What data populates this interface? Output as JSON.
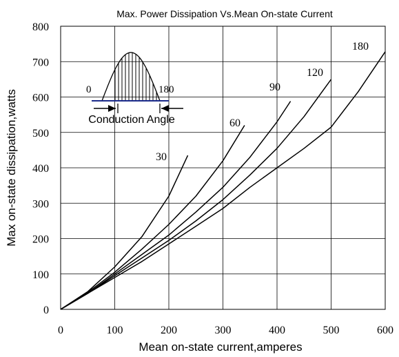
{
  "chart_data": {
    "type": "line",
    "title": "Max. Power Dissipation Vs.Mean On-state Current",
    "xlabel": "Mean on-state current,amperes",
    "ylabel": "Max on-state dissipation,watts",
    "xlim": [
      0,
      600
    ],
    "ylim": [
      0,
      800
    ],
    "x_ticks": [
      "0",
      "100",
      "200",
      "300",
      "400",
      "500",
      "600"
    ],
    "y_ticks": [
      "0",
      "100",
      "200",
      "300",
      "400",
      "500",
      "600",
      "700",
      "800"
    ],
    "grid": true,
    "series": [
      {
        "name": "30",
        "x": [
          0,
          50,
          100,
          150,
          200,
          235
        ],
        "y": [
          0,
          50,
          120,
          205,
          320,
          435
        ]
      },
      {
        "name": "60",
        "x": [
          0,
          50,
          100,
          150,
          200,
          250,
          300,
          340
        ],
        "y": [
          0,
          48,
          105,
          170,
          240,
          320,
          420,
          520
        ]
      },
      {
        "name": "90",
        "x": [
          0,
          50,
          100,
          150,
          200,
          250,
          300,
          350,
          400,
          425
        ],
        "y": [
          0,
          45,
          100,
          155,
          210,
          275,
          345,
          430,
          530,
          588
        ]
      },
      {
        "name": "120",
        "x": [
          0,
          50,
          100,
          150,
          200,
          250,
          300,
          350,
          400,
          450,
          500
        ],
        "y": [
          0,
          45,
          95,
          145,
          195,
          250,
          310,
          380,
          455,
          545,
          650
        ]
      },
      {
        "name": "180",
        "x": [
          0,
          50,
          100,
          150,
          200,
          250,
          300,
          350,
          400,
          450,
          500,
          550,
          600
        ],
        "y": [
          0,
          45,
          90,
          135,
          185,
          235,
          285,
          345,
          400,
          455,
          515,
          615,
          728
        ]
      }
    ],
    "curve_labels": [
      "30",
      "60",
      "90",
      "120",
      "180"
    ],
    "inset": {
      "left_label": "0",
      "right_label": "180",
      "caption": "Conduction Angle"
    }
  }
}
